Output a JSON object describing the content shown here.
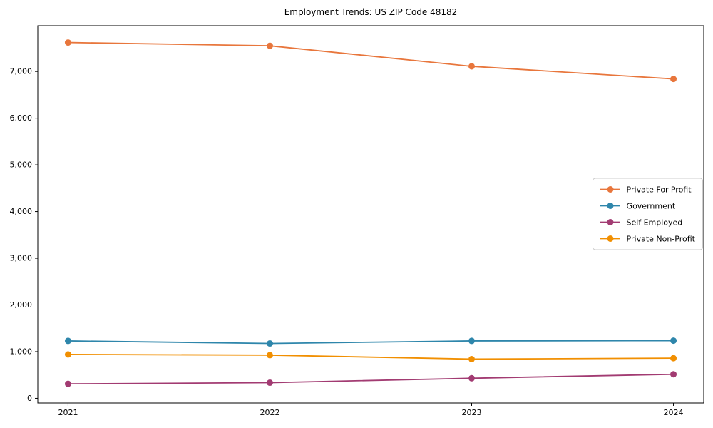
{
  "figure": {
    "title": "Employment Trends: US ZIP Code 48182",
    "background": "#ffffff"
  },
  "chart_data": {
    "type": "line",
    "title": "Employment Trends: US ZIP Code 48182",
    "x": [
      2021,
      2022,
      2023,
      2024
    ],
    "xtick_labels": [
      "2021",
      "2022",
      "2023",
      "2024"
    ],
    "series": [
      {
        "name": "Private For-Profit",
        "color": "#E8763C",
        "values": [
          7620,
          7550,
          7110,
          6840
        ]
      },
      {
        "name": "Government",
        "color": "#2E86AB",
        "values": [
          1230,
          1175,
          1230,
          1235
        ]
      },
      {
        "name": "Self-Employed",
        "color": "#A23B72",
        "values": [
          310,
          335,
          430,
          515
        ]
      },
      {
        "name": "Private Non-Profit",
        "color": "#F18F01",
        "values": [
          940,
          925,
          840,
          860
        ]
      }
    ],
    "xlabel": "",
    "ylabel": "",
    "ylim": [
      -100,
      7980
    ],
    "x_margin_frac": 0.05,
    "yticks": [
      0,
      1000,
      2000,
      3000,
      4000,
      5000,
      6000,
      7000
    ],
    "ytick_labels": [
      "0",
      "1,000",
      "2,000",
      "3,000",
      "4,000",
      "5,000",
      "6,000",
      "7,000"
    ],
    "grid": false,
    "legend_position": "center right",
    "marker": "circle",
    "marker_radius": 4.5,
    "line_width": 1.8,
    "axis_color": "#000000"
  }
}
